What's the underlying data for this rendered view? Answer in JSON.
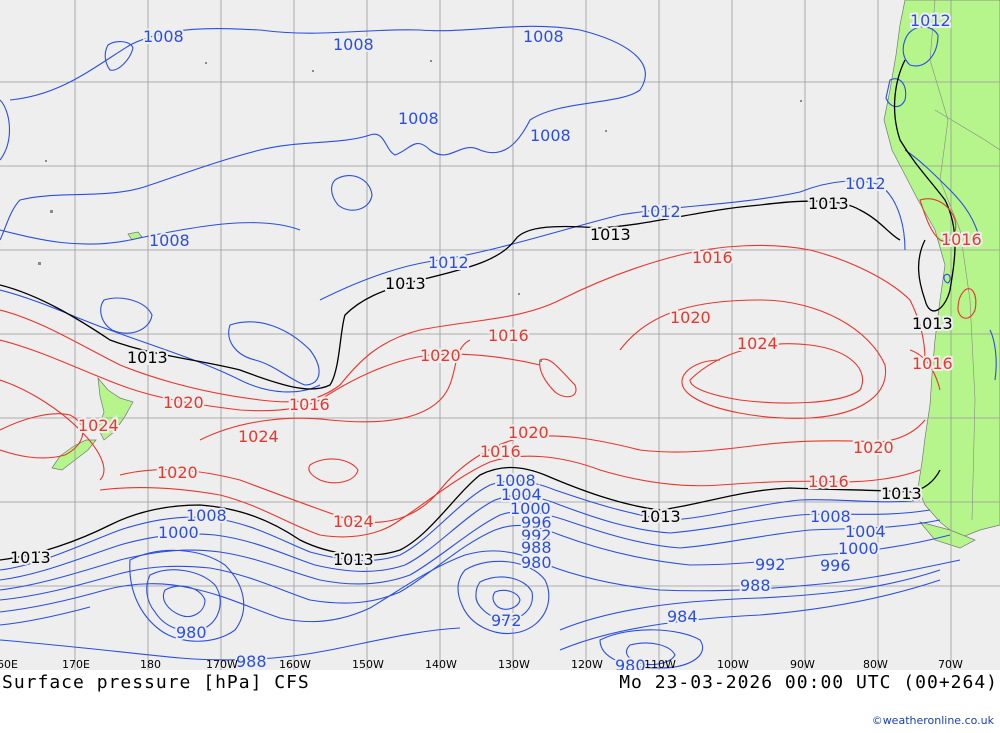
{
  "caption": {
    "left": "Surface pressure [hPa] CFS",
    "right": "Mo 23-03-2026 00:00 UTC (00+264)"
  },
  "credit": "©weatheronline.co.uk",
  "colors": {
    "ocean": "#eeeeee",
    "land": "#b6f58c",
    "grid": "#999999",
    "low_isobar": "#2a4fe0",
    "mid_isobar": "#000000",
    "high_isobar": "#e8372c"
  },
  "longitude_ticks": [
    "60E",
    "170E",
    "180",
    "170W",
    "160W",
    "150W",
    "140W",
    "130W",
    "120W",
    "110W",
    "100W",
    "90W",
    "80W",
    "70W"
  ],
  "isobar_labels": [
    {
      "text": "1008",
      "color": "blue"
    },
    {
      "text": "1008",
      "color": "blue"
    },
    {
      "text": "1008",
      "color": "blue"
    },
    {
      "text": "1008",
      "color": "blue"
    },
    {
      "text": "1008",
      "color": "blue"
    },
    {
      "text": "1008",
      "color": "blue"
    },
    {
      "text": "1012",
      "color": "blue"
    },
    {
      "text": "1012",
      "color": "blue"
    },
    {
      "text": "1012",
      "color": "blue"
    },
    {
      "text": "1012",
      "color": "blue"
    },
    {
      "text": "1013",
      "color": "black"
    },
    {
      "text": "1013",
      "color": "black"
    },
    {
      "text": "1013",
      "color": "black"
    },
    {
      "text": "1013",
      "color": "black"
    },
    {
      "text": "1013",
      "color": "black"
    },
    {
      "text": "1013",
      "color": "black"
    },
    {
      "text": "1013",
      "color": "black"
    },
    {
      "text": "1013",
      "color": "black"
    },
    {
      "text": "1013",
      "color": "black"
    },
    {
      "text": "1016",
      "color": "red"
    },
    {
      "text": "1016",
      "color": "red"
    },
    {
      "text": "1016",
      "color": "red"
    },
    {
      "text": "1016",
      "color": "red"
    },
    {
      "text": "1016",
      "color": "red"
    },
    {
      "text": "1016",
      "color": "red"
    },
    {
      "text": "1016",
      "color": "red"
    },
    {
      "text": "1020",
      "color": "red"
    },
    {
      "text": "1020",
      "color": "red"
    },
    {
      "text": "1020",
      "color": "red"
    },
    {
      "text": "1020",
      "color": "red"
    },
    {
      "text": "1020",
      "color": "red"
    },
    {
      "text": "1020",
      "color": "red"
    },
    {
      "text": "1024",
      "color": "red"
    },
    {
      "text": "1024",
      "color": "red"
    },
    {
      "text": "1024",
      "color": "red"
    },
    {
      "text": "1024",
      "color": "red"
    },
    {
      "text": "1008",
      "color": "blue"
    },
    {
      "text": "1004",
      "color": "blue"
    },
    {
      "text": "1000",
      "color": "blue"
    },
    {
      "text": "996",
      "color": "blue"
    },
    {
      "text": "992",
      "color": "blue"
    },
    {
      "text": "988",
      "color": "blue"
    },
    {
      "text": "980",
      "color": "blue"
    },
    {
      "text": "972",
      "color": "blue"
    },
    {
      "text": "1008",
      "color": "blue"
    },
    {
      "text": "1004",
      "color": "blue"
    },
    {
      "text": "1000",
      "color": "blue"
    },
    {
      "text": "996",
      "color": "blue"
    },
    {
      "text": "992",
      "color": "blue"
    },
    {
      "text": "988",
      "color": "blue"
    },
    {
      "text": "984",
      "color": "blue"
    },
    {
      "text": "980",
      "color": "blue"
    },
    {
      "text": "1008",
      "color": "blue"
    },
    {
      "text": "980",
      "color": "blue"
    },
    {
      "text": "988",
      "color": "blue"
    },
    {
      "text": "1000",
      "color": "blue"
    }
  ]
}
